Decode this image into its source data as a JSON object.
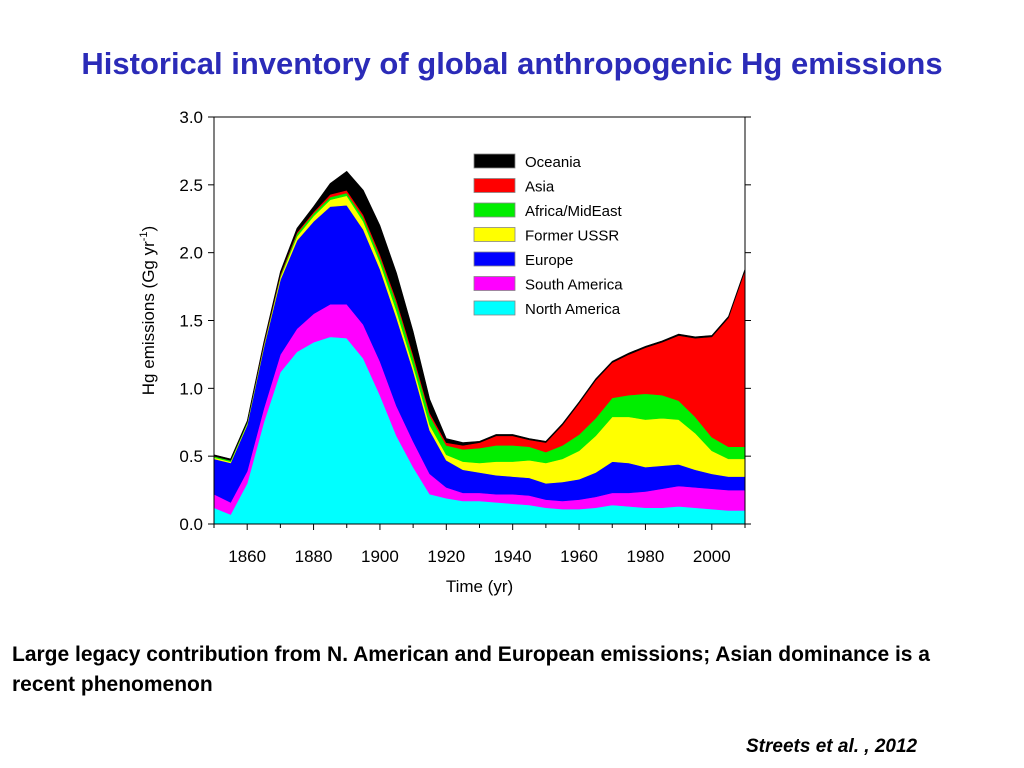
{
  "slide": {
    "title": "Historical inventory of global anthropogenic Hg emissions",
    "caption": " Large legacy contribution from N. American and European emissions; Asian dominance is a recent phenomenon",
    "citation": "Streets et al. , 2012"
  },
  "chart_data": {
    "type": "area",
    "stacked": true,
    "title": "",
    "xlabel": "Time (yr)",
    "ylabel_main": "Hg emissions (Gg yr",
    "ylabel_sup": "-1",
    "ylabel_close": ")",
    "xlim": [
      1850,
      2010
    ],
    "ylim": [
      0,
      3.0
    ],
    "x_ticks": [
      1860,
      1880,
      1900,
      1920,
      1940,
      1960,
      1980,
      2000
    ],
    "x_tick_labels": [
      "1860",
      "1880",
      "1900",
      "1920",
      "1940",
      "1960",
      "1980",
      "2000"
    ],
    "y_ticks": [
      0,
      0.5,
      1.0,
      1.5,
      2.0,
      2.5,
      3.0
    ],
    "y_tick_labels": [
      "0.0",
      "0.5",
      "1.0",
      "1.5",
      "2.0",
      "2.5",
      "3.0"
    ],
    "legend_position": "top-right",
    "x": [
      1850,
      1855,
      1860,
      1865,
      1870,
      1875,
      1880,
      1885,
      1890,
      1895,
      1900,
      1905,
      1910,
      1915,
      1920,
      1925,
      1930,
      1935,
      1940,
      1945,
      1950,
      1955,
      1960,
      1965,
      1970,
      1975,
      1980,
      1985,
      1990,
      1995,
      2000,
      2005,
      2010
    ],
    "series": [
      {
        "name": "North America",
        "color": "#00ffff",
        "values": [
          0.12,
          0.07,
          0.3,
          0.75,
          1.12,
          1.27,
          1.34,
          1.38,
          1.37,
          1.22,
          0.95,
          0.65,
          0.42,
          0.22,
          0.19,
          0.17,
          0.17,
          0.16,
          0.15,
          0.14,
          0.12,
          0.11,
          0.11,
          0.12,
          0.14,
          0.13,
          0.12,
          0.12,
          0.13,
          0.12,
          0.11,
          0.1,
          0.1
        ]
      },
      {
        "name": "South America",
        "color": "#ff00ff",
        "values": [
          0.1,
          0.09,
          0.09,
          0.1,
          0.13,
          0.17,
          0.21,
          0.24,
          0.25,
          0.25,
          0.25,
          0.22,
          0.19,
          0.15,
          0.08,
          0.06,
          0.06,
          0.06,
          0.07,
          0.07,
          0.06,
          0.06,
          0.07,
          0.08,
          0.09,
          0.1,
          0.12,
          0.14,
          0.15,
          0.15,
          0.15,
          0.15,
          0.15
        ]
      },
      {
        "name": "Europe",
        "color": "#0000ff",
        "values": [
          0.26,
          0.29,
          0.34,
          0.45,
          0.55,
          0.65,
          0.68,
          0.72,
          0.73,
          0.7,
          0.68,
          0.65,
          0.52,
          0.32,
          0.2,
          0.17,
          0.15,
          0.14,
          0.13,
          0.13,
          0.12,
          0.14,
          0.15,
          0.18,
          0.23,
          0.22,
          0.18,
          0.17,
          0.16,
          0.13,
          0.11,
          0.1,
          0.1
        ]
      },
      {
        "name": "Former USSR",
        "color": "#ffff00",
        "values": [
          0.01,
          0.01,
          0.01,
          0.01,
          0.02,
          0.03,
          0.04,
          0.05,
          0.07,
          0.06,
          0.05,
          0.05,
          0.04,
          0.04,
          0.04,
          0.06,
          0.07,
          0.1,
          0.11,
          0.13,
          0.15,
          0.17,
          0.21,
          0.27,
          0.33,
          0.34,
          0.35,
          0.35,
          0.33,
          0.27,
          0.17,
          0.13,
          0.13
        ]
      },
      {
        "name": "Africa/MidEast",
        "color": "#00ee00",
        "values": [
          0.01,
          0.01,
          0.01,
          0.01,
          0.01,
          0.02,
          0.02,
          0.02,
          0.02,
          0.03,
          0.04,
          0.06,
          0.06,
          0.07,
          0.07,
          0.09,
          0.11,
          0.12,
          0.12,
          0.1,
          0.08,
          0.1,
          0.12,
          0.13,
          0.14,
          0.16,
          0.19,
          0.17,
          0.14,
          0.12,
          0.1,
          0.09,
          0.09
        ]
      },
      {
        "name": "Asia",
        "color": "#ff0000",
        "values": [
          0.0,
          0.0,
          0.0,
          0.01,
          0.01,
          0.01,
          0.01,
          0.02,
          0.02,
          0.02,
          0.02,
          0.02,
          0.02,
          0.02,
          0.02,
          0.03,
          0.04,
          0.07,
          0.07,
          0.05,
          0.07,
          0.15,
          0.23,
          0.28,
          0.26,
          0.3,
          0.34,
          0.39,
          0.48,
          0.58,
          0.74,
          0.95,
          1.3
        ]
      },
      {
        "name": "Oceania",
        "color": "#000000",
        "values": [
          0.01,
          0.01,
          0.01,
          0.01,
          0.02,
          0.03,
          0.04,
          0.08,
          0.14,
          0.18,
          0.21,
          0.2,
          0.17,
          0.1,
          0.03,
          0.02,
          0.01,
          0.01,
          0.01,
          0.01,
          0.01,
          0.01,
          0.01,
          0.01,
          0.01,
          0.01,
          0.01,
          0.01,
          0.01,
          0.01,
          0.01,
          0.01,
          0.01
        ]
      }
    ],
    "legend_order": [
      "Oceania",
      "Asia",
      "Africa/MidEast",
      "Former USSR",
      "Europe",
      "South America",
      "North America"
    ]
  }
}
